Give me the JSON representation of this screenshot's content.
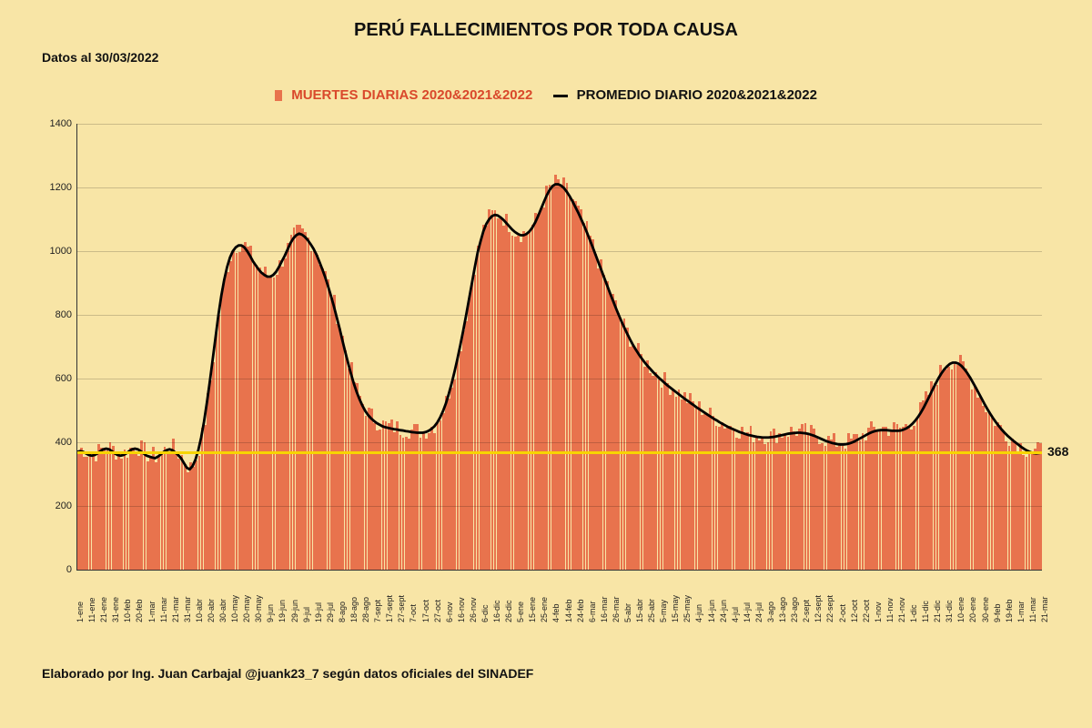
{
  "title": "PERÚ FALLECIMIENTOS POR TODA CAUSA",
  "date_label": "Datos al 30/03/2022",
  "legend": {
    "series1": "MUERTES DIARIAS 2020&2021&2022",
    "series2": "PROMEDIO DIARIO 2020&2021&2022"
  },
  "footer": "Elaborado por Ing. Juan Carbajal @juank23_7 según datos oficiales del SINADEF",
  "chart": {
    "type": "bar+line",
    "background_color": "#f8e5a6",
    "bar_color": "#e8734d",
    "line_color": "#000000",
    "line_width": 2.8,
    "grid_color": "rgba(0,0,0,0.18)",
    "baseline_color": "#f7d400",
    "baseline_value": 368,
    "baseline_label": "368",
    "ylim": [
      0,
      1400
    ],
    "ytick_step": 200,
    "yticks": [
      0,
      200,
      400,
      600,
      800,
      1000,
      1200,
      1400
    ],
    "x_labels": [
      "1-ene",
      "11-ene",
      "21-ene",
      "31-ene",
      "10-feb",
      "20-feb",
      "1-mar",
      "11-mar",
      "21-mar",
      "31-mar",
      "10-abr",
      "20-abr",
      "30-abr",
      "10-may",
      "20-may",
      "30-may",
      "9-jun",
      "19-jun",
      "29-jun",
      "9-jul",
      "19-jul",
      "29-jul",
      "8-ago",
      "18-ago",
      "28-ago",
      "7-sept",
      "17-sept",
      "27-sept",
      "7-oct",
      "17-oct",
      "27-oct",
      "6-nov",
      "16-nov",
      "26-nov",
      "6-dic",
      "16-dic",
      "26-dic",
      "5-ene",
      "15-ene",
      "25-ene",
      "4-feb",
      "14-feb",
      "24-feb",
      "6-mar",
      "16-mar",
      "26-mar",
      "5-abr",
      "15-abr",
      "25-abr",
      "5-may",
      "15-may",
      "25-may",
      "4-jun",
      "14-jun",
      "24-jun",
      "4-jul",
      "14-jul",
      "24-jul",
      "3-ago",
      "13-ago",
      "23-ago",
      "2-sept",
      "12-sept",
      "22-sept",
      "2-oct",
      "12-oct",
      "22-oct",
      "1-nov",
      "11-nov",
      "21-nov",
      "1-dic",
      "11-dic",
      "21-dic",
      "31-dic",
      "10-ene",
      "20-ene",
      "30-ene",
      "9-feb",
      "19-feb",
      "1-mar",
      "11-mar",
      "21-mar"
    ],
    "avg_line": [
      370,
      372,
      370,
      365,
      360,
      358,
      360,
      365,
      372,
      378,
      380,
      378,
      372,
      365,
      360,
      358,
      360,
      365,
      372,
      378,
      380,
      378,
      372,
      365,
      358,
      355,
      352,
      350,
      355,
      362,
      370,
      375,
      378,
      375,
      368,
      360,
      350,
      335,
      320,
      315,
      325,
      345,
      375,
      415,
      465,
      525,
      590,
      660,
      730,
      800,
      860,
      910,
      950,
      980,
      1000,
      1012,
      1018,
      1018,
      1012,
      1000,
      985,
      968,
      955,
      942,
      932,
      925,
      920,
      920,
      925,
      935,
      950,
      968,
      985,
      1005,
      1025,
      1040,
      1050,
      1055,
      1052,
      1045,
      1035,
      1022,
      1008,
      990,
      968,
      945,
      920,
      892,
      862,
      830,
      795,
      760,
      722,
      685,
      650,
      616,
      585,
      558,
      535,
      515,
      498,
      485,
      475,
      467,
      460,
      455,
      450,
      447,
      445,
      443,
      441,
      440,
      438,
      437,
      435,
      434,
      432,
      431,
      430,
      430,
      430,
      432,
      436,
      442,
      450,
      462,
      478,
      498,
      522,
      552,
      585,
      622,
      662,
      705,
      750,
      798,
      848,
      898,
      948,
      995,
      1030,
      1062,
      1085,
      1100,
      1110,
      1114,
      1112,
      1106,
      1098,
      1088,
      1078,
      1068,
      1060,
      1054,
      1050,
      1050,
      1054,
      1062,
      1074,
      1090,
      1110,
      1132,
      1154,
      1175,
      1192,
      1204,
      1210,
      1210,
      1206,
      1198,
      1186,
      1172,
      1156,
      1138,
      1120,
      1100,
      1080,
      1058,
      1035,
      1012,
      988,
      964,
      940,
      916,
      892,
      868,
      845,
      822,
      800,
      779,
      759,
      740,
      722,
      705,
      690,
      676,
      663,
      651,
      640,
      630,
      620,
      611,
      602,
      594,
      586,
      578,
      571,
      564,
      557,
      550,
      543,
      536,
      530,
      523,
      517,
      510,
      504,
      498,
      492,
      486,
      480,
      474,
      469,
      463,
      458,
      453,
      448,
      444,
      440,
      436,
      432,
      429,
      426,
      423,
      421,
      419,
      417,
      416,
      415,
      415,
      415,
      416,
      417,
      419,
      421,
      423,
      425,
      427,
      428,
      429,
      430,
      430,
      429,
      428,
      426,
      423,
      420,
      416,
      412,
      408,
      404,
      401,
      398,
      396,
      394,
      393,
      393,
      394,
      396,
      399,
      403,
      408,
      413,
      418,
      423,
      428,
      432,
      435,
      437,
      438,
      438,
      438,
      437,
      436,
      436,
      436,
      437,
      440,
      444,
      450,
      458,
      468,
      480,
      494,
      510,
      528,
      546,
      565,
      583,
      600,
      615,
      628,
      638,
      646,
      650,
      650,
      647,
      640,
      630,
      618,
      604,
      588,
      572,
      555,
      538,
      521,
      505,
      490,
      476,
      463,
      451,
      440,
      430,
      421,
      413,
      405,
      398,
      391,
      384,
      378,
      373,
      369,
      366,
      365,
      366,
      368
    ],
    "daily_noise_amplitude": 30
  }
}
